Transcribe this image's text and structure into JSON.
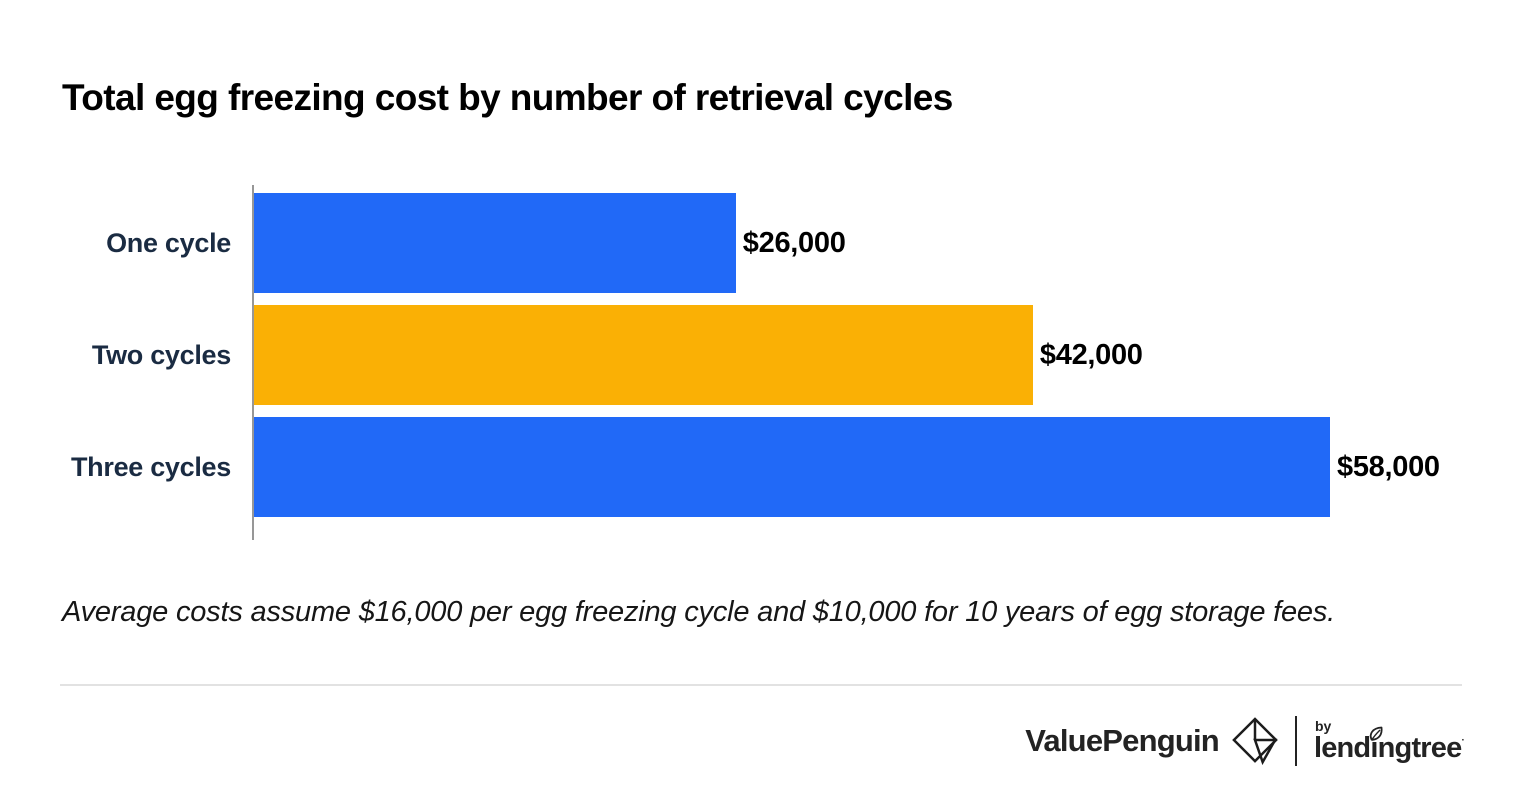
{
  "header": {
    "title": "Total egg freezing cost by number of retrieval cycles"
  },
  "chart_data": {
    "type": "bar",
    "orientation": "horizontal",
    "title": "Total egg freezing cost by number of retrieval cycles",
    "categories": [
      "One cycle",
      "Two cycles",
      "Three cycles"
    ],
    "values": [
      26000,
      42000,
      58000
    ],
    "value_labels": [
      "$26,000",
      "$42,000",
      "$58,000"
    ],
    "bar_colors": [
      "#2169F7",
      "#FAB005",
      "#2169F7"
    ],
    "xlabel": "",
    "ylabel": "",
    "xlim": [
      0,
      65000
    ],
    "grid": false,
    "legend": false,
    "axis_line_color": "#979797",
    "category_label_color": "#1A2B42",
    "value_label_color": "#000000"
  },
  "footnote": {
    "text": "Average costs assume $16,000 per egg freezing cycle and $10,000 for 10 years of egg storage fees."
  },
  "footer": {
    "brand": "ValuePenguin",
    "brand_icon": "valuepenguin-diamond-icon",
    "byline": "by",
    "partner_prefix": "lend",
    "partner_i": "ı",
    "partner_suffix": "ngtree",
    "partner_full": "lendingtree",
    "partner_icon": "lendingtree-leaf-icon",
    "trademark": "·",
    "text_color": "#232323"
  }
}
